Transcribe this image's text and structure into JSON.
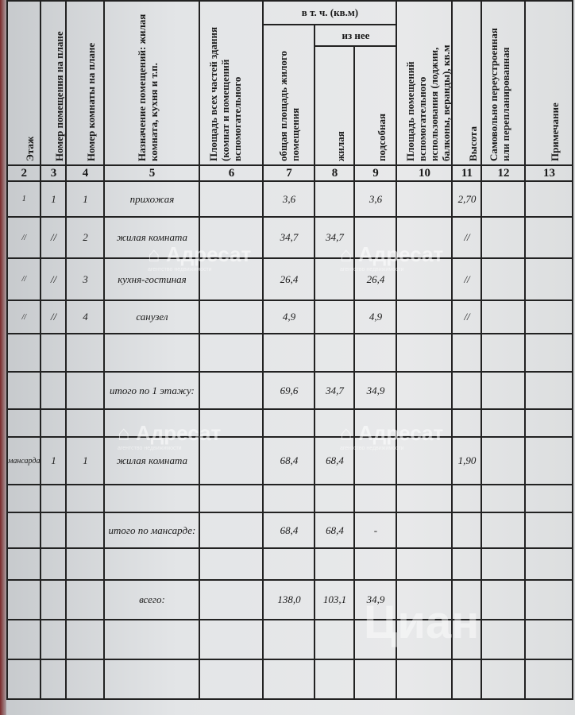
{
  "headers": {
    "c2": "Этаж",
    "c3": "Номер помещения на плане",
    "c4": "Номер комнаты на плане",
    "c5": "Назначение помещений: жилая комната, кухня и т.п.",
    "c6": "Площадь всех частей здания (комнат и помещений вспомогательного",
    "group": "в т. ч. (кв.м)",
    "c7": "общая площадь жилого помещения",
    "subgroup": "из нее",
    "c8": "жилая",
    "c9": "подсобная",
    "c10": "Площадь помещений вспомогательного использования (лоджии, балконы, веранды), кв.м",
    "c11": "Высота",
    "c12": "Самовольно переустроенная или перепланированная",
    "c13": "Примечание"
  },
  "column_numbers": [
    "2",
    "3",
    "4",
    "5",
    "6",
    "7",
    "8",
    "9",
    "10",
    "11",
    "12",
    "13"
  ],
  "rows": [
    {
      "floor": "1",
      "pom": "1",
      "room": "1",
      "name": "прихожая",
      "total": "3,6",
      "living": "",
      "aux": "3,6",
      "height": "2,70"
    },
    {
      "floor": "//",
      "pom": "//",
      "room": "2",
      "name": "жилая комната",
      "total": "34,7",
      "living": "34,7",
      "aux": "",
      "height": "//"
    },
    {
      "floor": "//",
      "pom": "//",
      "room": "3",
      "name": "кухня-гостиная",
      "total": "26,4",
      "living": "",
      "aux": "26,4",
      "height": "//"
    },
    {
      "floor": "//",
      "pom": "//",
      "room": "4",
      "name": "санузел",
      "total": "4,9",
      "living": "",
      "aux": "4,9",
      "height": "//"
    },
    {
      "floor": "",
      "pom": "",
      "room": "",
      "name": "",
      "total": "",
      "living": "",
      "aux": "",
      "height": ""
    },
    {
      "floor": "",
      "pom": "",
      "room": "",
      "name": "итого по 1 этажу:",
      "total": "69,6",
      "living": "34,7",
      "aux": "34,9",
      "height": ""
    },
    {
      "floor": "",
      "pom": "",
      "room": "",
      "name": "",
      "total": "",
      "living": "",
      "aux": "",
      "height": ""
    },
    {
      "floor": "мансарда",
      "pom": "1",
      "room": "1",
      "name": "жилая комната",
      "total": "68,4",
      "living": "68,4",
      "aux": "",
      "height": "1,90"
    },
    {
      "floor": "",
      "pom": "",
      "room": "",
      "name": "",
      "total": "",
      "living": "",
      "aux": "",
      "height": ""
    },
    {
      "floor": "",
      "pom": "",
      "room": "",
      "name": "итого по мансарде:",
      "total": "68,4",
      "living": "68,4",
      "aux": "-",
      "height": ""
    },
    {
      "floor": "",
      "pom": "",
      "room": "",
      "name": "",
      "total": "",
      "living": "",
      "aux": "",
      "height": ""
    },
    {
      "floor": "",
      "pom": "",
      "room": "",
      "name": "всего:",
      "total": "138,0",
      "living": "103,1",
      "aux": "34,9",
      "height": ""
    },
    {
      "floor": "",
      "pom": "",
      "room": "",
      "name": "",
      "total": "",
      "living": "",
      "aux": "",
      "height": ""
    },
    {
      "floor": "",
      "pom": "",
      "room": "",
      "name": "",
      "total": "",
      "living": "",
      "aux": "",
      "height": ""
    }
  ],
  "watermarks": {
    "brand": "Адресат",
    "tagline": "агентство недвижимости",
    "site": "Циан"
  }
}
